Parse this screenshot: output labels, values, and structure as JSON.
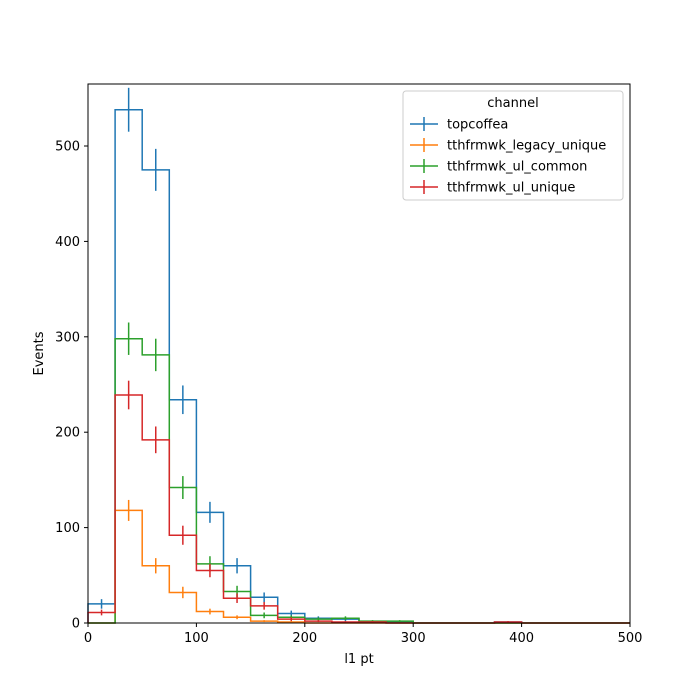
{
  "chart_data": {
    "type": "step-histogram",
    "xlabel": "l1 pt",
    "ylabel": "Events",
    "xlim": [
      0,
      500
    ],
    "ylim": [
      0,
      565
    ],
    "bin_edges": [
      0,
      25,
      50,
      75,
      100,
      125,
      150,
      175,
      200,
      225,
      250,
      275,
      300,
      325,
      350,
      375,
      400,
      425,
      450,
      475,
      500
    ],
    "x_ticks": [
      0,
      100,
      200,
      300,
      400,
      500
    ],
    "y_ticks": [
      0,
      100,
      200,
      300,
      400,
      500
    ],
    "grid": false,
    "legend": {
      "title": "channel",
      "placement": "top-right"
    },
    "series": [
      {
        "name": "topcoffea",
        "color": "#1f77b4",
        "values": [
          20,
          538,
          475,
          234,
          116,
          60,
          27,
          10,
          5,
          4,
          1,
          1,
          0,
          0,
          0,
          1,
          0,
          0,
          0,
          0
        ],
        "errors": [
          5,
          23,
          22,
          15,
          11,
          8,
          5,
          3,
          2,
          2,
          1,
          1,
          0,
          0,
          0,
          1,
          0,
          0,
          0,
          0
        ]
      },
      {
        "name": "tthfrmwk_legacy_unique",
        "color": "#ff7f0e",
        "values": [
          0,
          118,
          60,
          32,
          12,
          6,
          2,
          1,
          0,
          0,
          0,
          0,
          0,
          0,
          0,
          0,
          0,
          0,
          0,
          0
        ],
        "errors": [
          0,
          11,
          8,
          6,
          3,
          2,
          1,
          1,
          0,
          0,
          0,
          0,
          0,
          0,
          0,
          0,
          0,
          0,
          0,
          0
        ]
      },
      {
        "name": "tthfrmwk_ul_common",
        "color": "#2ca02c",
        "values": [
          0,
          298,
          281,
          142,
          62,
          33,
          8,
          6,
          4,
          5,
          2,
          2,
          0,
          0,
          0,
          0,
          0,
          0,
          0,
          0
        ],
        "errors": [
          0,
          17,
          17,
          12,
          8,
          6,
          3,
          2,
          2,
          2,
          1,
          1,
          0,
          0,
          0,
          0,
          0,
          0,
          0,
          0
        ]
      },
      {
        "name": "tthfrmwk_ul_unique",
        "color": "#d62728",
        "values": [
          11,
          239,
          192,
          92,
          55,
          26,
          18,
          4,
          2,
          1,
          1,
          0,
          0,
          0,
          0,
          1,
          0,
          0,
          0,
          0
        ],
        "errors": [
          3,
          15,
          14,
          10,
          7,
          5,
          4,
          2,
          1,
          1,
          1,
          0,
          0,
          0,
          0,
          1,
          0,
          0,
          0,
          0
        ]
      }
    ]
  }
}
